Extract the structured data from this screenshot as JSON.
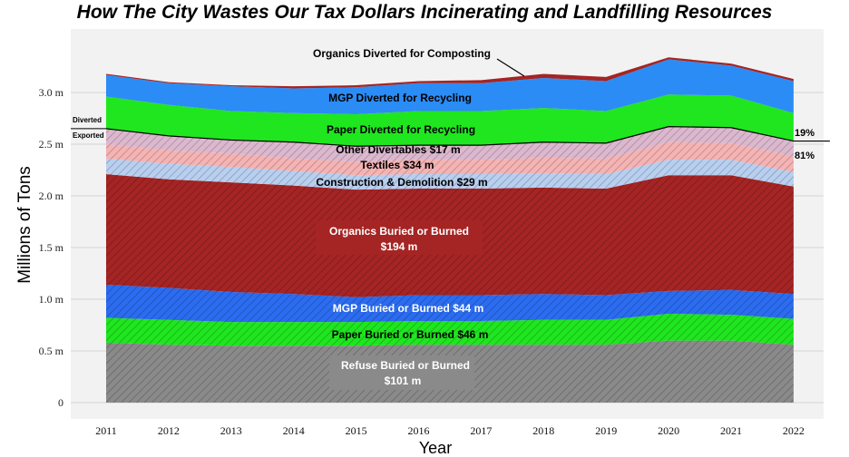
{
  "chart_data": {
    "type": "area",
    "title": "How The City Wastes Our Tax Dollars Incinerating and Landfilling Resources",
    "xlabel": "Year",
    "ylabel": "Millions of Tons",
    "ylim": [
      0,
      3.5
    ],
    "yticks": [
      {
        "value": 0,
        "label": "0"
      },
      {
        "value": 0.5,
        "label": "0.5 m"
      },
      {
        "value": 1.0,
        "label": "1.0 m"
      },
      {
        "value": 1.5,
        "label": "1.5 m"
      },
      {
        "value": 2.0,
        "label": "2.0 m"
      },
      {
        "value": 2.5,
        "label": "2.5 m"
      },
      {
        "value": 3.0,
        "label": "3.0 m"
      }
    ],
    "x": [
      "2011",
      "2012",
      "2013",
      "2014",
      "2015",
      "2016",
      "2017",
      "2018",
      "2019",
      "2020",
      "2021",
      "2022"
    ],
    "series": [
      {
        "name": "Refuse Buried or Burned",
        "cost": "$101 m",
        "color": "#8a8a8a",
        "hatched": true,
        "values": [
          0.58,
          0.56,
          0.55,
          0.55,
          0.55,
          0.56,
          0.56,
          0.56,
          0.56,
          0.6,
          0.6,
          0.56
        ]
      },
      {
        "name": "Paper Buried or Burned",
        "cost": "$46 m",
        "color": "#1fe61f",
        "hatched": true,
        "values": [
          0.24,
          0.24,
          0.23,
          0.23,
          0.23,
          0.23,
          0.23,
          0.24,
          0.24,
          0.26,
          0.25,
          0.25
        ]
      },
      {
        "name": "MGP Buried or Burned",
        "cost": "$44 m",
        "color": "#2b6cf0",
        "hatched": true,
        "values": [
          0.32,
          0.31,
          0.29,
          0.27,
          0.24,
          0.25,
          0.25,
          0.25,
          0.24,
          0.22,
          0.24,
          0.24
        ]
      },
      {
        "name": "Organics Buried or Burned",
        "cost": "$194 m",
        "color": "#a52424",
        "hatched": true,
        "values": [
          1.07,
          1.05,
          1.06,
          1.05,
          1.04,
          1.03,
          1.03,
          1.03,
          1.03,
          1.12,
          1.11,
          1.04
        ]
      },
      {
        "name": "Construction & Demolition",
        "cost": "$29 m",
        "color": "#b8cff0",
        "hatched": true,
        "values": [
          0.15,
          0.15,
          0.15,
          0.14,
          0.14,
          0.14,
          0.14,
          0.14,
          0.14,
          0.15,
          0.15,
          0.14
        ]
      },
      {
        "name": "Textiles",
        "cost": "$34 m",
        "color": "#f5b3b3",
        "hatched": true,
        "values": [
          0.14,
          0.13,
          0.13,
          0.12,
          0.13,
          0.14,
          0.14,
          0.15,
          0.15,
          0.17,
          0.16,
          0.15
        ]
      },
      {
        "name": "Other Divertables",
        "cost": "$17 m",
        "color": "#dcb8cf",
        "hatched": true,
        "values": [
          0.15,
          0.14,
          0.13,
          0.16,
          0.15,
          0.14,
          0.14,
          0.15,
          0.15,
          0.15,
          0.15,
          0.15
        ]
      },
      {
        "name": "Paper Diverted for Recycling",
        "color": "#1fe61f",
        "hatched": false,
        "values": [
          0.31,
          0.3,
          0.28,
          0.28,
          0.31,
          0.33,
          0.33,
          0.33,
          0.31,
          0.31,
          0.31,
          0.27
        ]
      },
      {
        "name": "MGP Diverted for Recycling",
        "color": "#2b8cf5",
        "hatched": false,
        "values": [
          0.21,
          0.21,
          0.24,
          0.24,
          0.26,
          0.27,
          0.27,
          0.29,
          0.29,
          0.34,
          0.29,
          0.31
        ]
      },
      {
        "name": "Organics Diverted for Composting",
        "color": "#a52424",
        "hatched": false,
        "values": [
          0.01,
          0.01,
          0.01,
          0.02,
          0.02,
          0.02,
          0.03,
          0.04,
          0.04,
          0.02,
          0.02,
          0.02
        ]
      }
    ],
    "annotations": {
      "diverted": "Diverted",
      "exported": "Exported",
      "diverted_pct": "19%",
      "exported_pct": "81%"
    },
    "grid": true,
    "legend": "inline labels"
  }
}
